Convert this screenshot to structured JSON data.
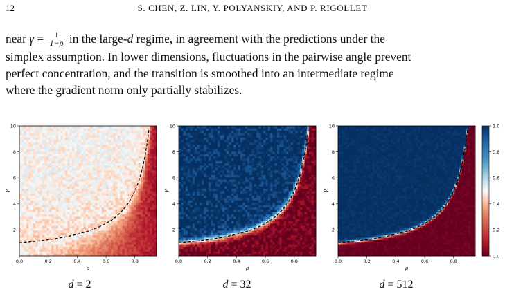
{
  "header": {
    "page_number": "12",
    "running_head": "S. CHEN, Z. LIN, Y. POLYANSKIY, AND P. RIGOLLET"
  },
  "paragraph": {
    "line1_pre": "near ",
    "gamma": "γ",
    "equals": " = ",
    "frac_num": "1",
    "frac_den": "1−ρ",
    "line1_mid": " in the large-",
    "d": "d",
    "line1_post": " regime, in agreement with the predictions under the",
    "line2": "simplex assumption. In lower dimensions, fluctuations in the pairwise angle prevent",
    "line3": "perfect concentration, and the transition is smoothed into an intermediate regime",
    "line4": "where the gradient norm only partially stabilizes."
  },
  "chart_data": [
    {
      "type": "heatmap",
      "caption_var": "d",
      "caption_val": "2",
      "xlabel": "ρ",
      "ylabel": "γ",
      "xlim": [
        0.0,
        0.95
      ],
      "ylim": [
        0.0,
        10.0
      ],
      "xticks": [
        "0.0",
        "0.2",
        "0.4",
        "0.6",
        "0.8"
      ],
      "yticks": [
        "2",
        "4",
        "6",
        "8",
        "10"
      ],
      "sharpness": 1.0,
      "noise": 0.1,
      "contour": "dashed γ = 1/(1−ρ)"
    },
    {
      "type": "heatmap",
      "caption_var": "d",
      "caption_val": "32",
      "xlabel": "ρ",
      "ylabel": "γ",
      "xlim": [
        0.0,
        0.95
      ],
      "ylim": [
        0.0,
        10.0
      ],
      "xticks": [
        "0.0",
        "0.2",
        "0.4",
        "0.6",
        "0.8"
      ],
      "yticks": [
        "2",
        "4",
        "6",
        "8",
        "10"
      ],
      "sharpness": 4.0,
      "noise": 0.18,
      "contour": "dashed γ = 1/(1−ρ)"
    },
    {
      "type": "heatmap",
      "caption_var": "d",
      "caption_val": "512",
      "xlabel": "ρ",
      "ylabel": "γ",
      "xlim": [
        0.0,
        0.95
      ],
      "ylim": [
        0.0,
        10.0
      ],
      "xticks": [
        "0.0",
        "0.2",
        "0.4",
        "0.6",
        "0.8"
      ],
      "yticks": [
        "2",
        "4",
        "6",
        "8",
        "10"
      ],
      "sharpness": 10.0,
      "noise": 0.05,
      "contour": "dashed γ = 1/(1−ρ)"
    }
  ],
  "colorbar": {
    "ticks": [
      "0.0",
      "0.2",
      "0.4",
      "0.6",
      "0.8",
      "1.0"
    ],
    "range": [
      0.0,
      1.0
    ],
    "colormap": "RdBu",
    "color_low": "#67001f",
    "color_mid": "#f7f7f7",
    "color_high": "#053061"
  }
}
